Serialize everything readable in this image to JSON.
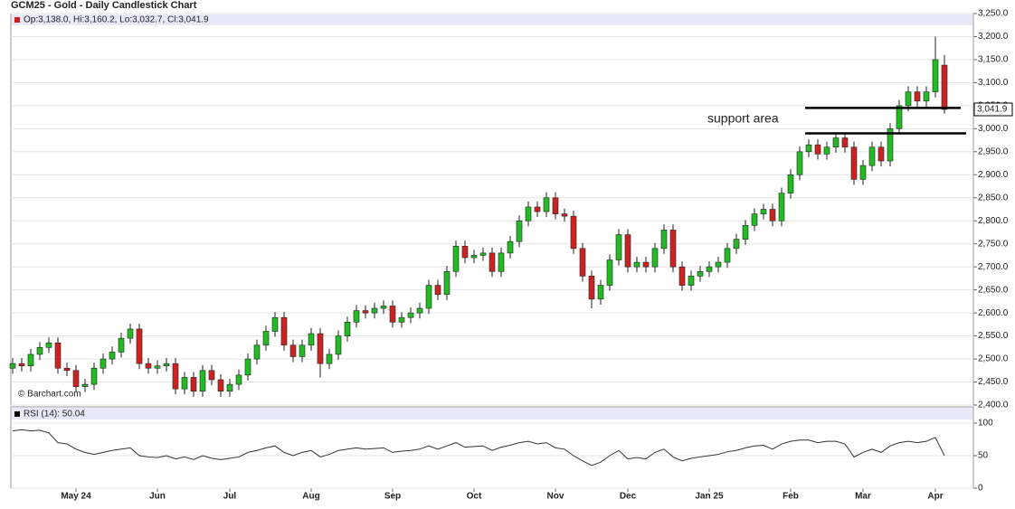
{
  "chart_data": [
    {
      "type": "candlestick",
      "title": "GCM25 - Gold - Daily Candlestick Chart",
      "legend_text": "Op:3,138.0, Hi:3,160.2, Lo:3,032.7, Cl:3,041.9",
      "source": "© Barchart.com",
      "up_color": "#22bb22",
      "down_color": "#cc2222",
      "grid": true,
      "categories": [
        null,
        null,
        null,
        null,
        null,
        null,
        null,
        "May 24",
        null,
        null,
        null,
        null,
        null,
        null,
        null,
        null,
        "Jun",
        null,
        null,
        null,
        null,
        null,
        null,
        null,
        "Jul",
        null,
        null,
        null,
        null,
        null,
        null,
        null,
        null,
        "Aug",
        null,
        null,
        null,
        null,
        null,
        null,
        null,
        null,
        "Sep",
        null,
        null,
        null,
        null,
        null,
        null,
        null,
        null,
        "Oct",
        null,
        null,
        null,
        null,
        null,
        null,
        null,
        null,
        "Nov",
        null,
        null,
        null,
        null,
        null,
        null,
        null,
        "Dec",
        null,
        null,
        null,
        null,
        null,
        null,
        null,
        null,
        "Jan 25",
        null,
        null,
        null,
        null,
        null,
        null,
        null,
        null,
        "Feb",
        null,
        null,
        null,
        null,
        null,
        null,
        null,
        "Mar",
        null,
        null,
        null,
        null,
        null,
        null,
        null,
        "Apr",
        null
      ],
      "open": [
        2480,
        2490,
        2485,
        2510,
        2525,
        2535,
        2480,
        2475,
        2440,
        2445,
        2480,
        2500,
        2515,
        2545,
        2565,
        2490,
        2480,
        2485,
        2490,
        2435,
        2460,
        2430,
        2475,
        2455,
        2430,
        2445,
        2465,
        2500,
        2530,
        2560,
        2590,
        2530,
        2505,
        2530,
        2555,
        2490,
        2510,
        2550,
        2580,
        2605,
        2600,
        2610,
        2615,
        2580,
        2590,
        2600,
        2610,
        2660,
        2640,
        2690,
        2745,
        2720,
        2725,
        2730,
        2690,
        2730,
        2755,
        2800,
        2830,
        2820,
        2850,
        2815,
        2810,
        2740,
        2680,
        2630,
        2660,
        2715,
        2770,
        2700,
        2710,
        2700,
        2740,
        2780,
        2700,
        2660,
        2680,
        2690,
        2700,
        2710,
        2740,
        2760,
        2790,
        2815,
        2825,
        2800,
        2860,
        2900,
        2950,
        2965,
        2945,
        2960,
        2980,
        2960,
        2890,
        2920,
        2960,
        2930,
        3000,
        3050,
        3080,
        3060,
        3080,
        3138
      ],
      "high": [
        2502,
        2502,
        2522,
        2537,
        2547,
        2547,
        2492,
        2487,
        2457,
        2492,
        2512,
        2527,
        2557,
        2577,
        2577,
        2502,
        2497,
        2502,
        2502,
        2472,
        2472,
        2487,
        2487,
        2467,
        2457,
        2477,
        2512,
        2542,
        2572,
        2602,
        2602,
        2542,
        2542,
        2567,
        2567,
        2522,
        2562,
        2592,
        2617,
        2617,
        2622,
        2627,
        2627,
        2602,
        2612,
        2622,
        2672,
        2672,
        2702,
        2757,
        2757,
        2737,
        2742,
        2742,
        2742,
        2767,
        2812,
        2842,
        2842,
        2862,
        2862,
        2827,
        2822,
        2752,
        2692,
        2672,
        2727,
        2782,
        2782,
        2722,
        2722,
        2752,
        2792,
        2792,
        2712,
        2692,
        2702,
        2712,
        2722,
        2752,
        2772,
        2802,
        2827,
        2837,
        2837,
        2872,
        2912,
        2962,
        2977,
        2977,
        2972,
        2992,
        2992,
        2972,
        2932,
        2972,
        2972,
        3012,
        3062,
        3092,
        3092,
        3092,
        3200,
        3160.2
      ],
      "low": [
        2468,
        2473,
        2473,
        2498,
        2513,
        2468,
        2463,
        2428,
        2428,
        2433,
        2468,
        2488,
        2503,
        2533,
        2478,
        2468,
        2468,
        2473,
        2423,
        2423,
        2418,
        2418,
        2443,
        2418,
        2418,
        2433,
        2453,
        2488,
        2518,
        2548,
        2518,
        2493,
        2493,
        2518,
        2460,
        2478,
        2498,
        2538,
        2568,
        2588,
        2588,
        2598,
        2568,
        2568,
        2578,
        2588,
        2598,
        2628,
        2628,
        2678,
        2708,
        2708,
        2713,
        2678,
        2678,
        2718,
        2743,
        2788,
        2808,
        2808,
        2803,
        2798,
        2728,
        2668,
        2610,
        2618,
        2648,
        2703,
        2688,
        2688,
        2688,
        2688,
        2728,
        2688,
        2648,
        2648,
        2668,
        2678,
        2688,
        2698,
        2728,
        2748,
        2778,
        2803,
        2788,
        2788,
        2848,
        2888,
        2938,
        2933,
        2933,
        2948,
        2948,
        2878,
        2878,
        2908,
        2918,
        2918,
        2988,
        3038,
        3048,
        3048,
        3068,
        3032.7
      ],
      "close": [
        2490,
        2485,
        2510,
        2525,
        2535,
        2480,
        2475,
        2440,
        2445,
        2480,
        2500,
        2515,
        2545,
        2565,
        2490,
        2480,
        2485,
        2490,
        2435,
        2460,
        2430,
        2475,
        2455,
        2430,
        2445,
        2465,
        2500,
        2530,
        2560,
        2590,
        2530,
        2505,
        2530,
        2555,
        2490,
        2510,
        2550,
        2580,
        2605,
        2600,
        2610,
        2615,
        2580,
        2590,
        2600,
        2610,
        2660,
        2640,
        2690,
        2745,
        2720,
        2725,
        2730,
        2690,
        2730,
        2755,
        2800,
        2830,
        2820,
        2850,
        2815,
        2810,
        2740,
        2680,
        2630,
        2660,
        2715,
        2770,
        2700,
        2710,
        2700,
        2740,
        2780,
        2700,
        2660,
        2680,
        2690,
        2700,
        2710,
        2740,
        2760,
        2790,
        2815,
        2825,
        2800,
        2860,
        2900,
        2950,
        2965,
        2945,
        2960,
        2980,
        2960,
        2890,
        2920,
        2960,
        2930,
        3000,
        3050,
        3080,
        3060,
        3080,
        3150,
        3041.9
      ],
      "ylim": [
        2400,
        3250
      ],
      "yticks": [
        {
          "value": 2400,
          "label": "2,400.0"
        },
        {
          "value": 2450,
          "label": "2,450.0"
        },
        {
          "value": 2500,
          "label": "2,500.0"
        },
        {
          "value": 2550,
          "label": "2,550.0"
        },
        {
          "value": 2600,
          "label": "2,600.0"
        },
        {
          "value": 2650,
          "label": "2,650.0"
        },
        {
          "value": 2700,
          "label": "2,700.0"
        },
        {
          "value": 2750,
          "label": "2,750.0"
        },
        {
          "value": 2800,
          "label": "2,800.0"
        },
        {
          "value": 2850,
          "label": "2,850.0"
        },
        {
          "value": 2900,
          "label": "2,900.0"
        },
        {
          "value": 2950,
          "label": "2,950.0"
        },
        {
          "value": 3000,
          "label": "3,000.0"
        },
        {
          "value": 3050,
          "label": "3,050.0"
        },
        {
          "value": 3100,
          "label": "3,100.0"
        },
        {
          "value": 3150,
          "label": "3,150.0"
        },
        {
          "value": 3200,
          "label": "3,200.0"
        },
        {
          "value": 3250,
          "label": "3,250.0"
        }
      ],
      "last_price": {
        "value": 3041.9,
        "label": "3,041.9"
      },
      "support_lines": [
        3045,
        2990
      ],
      "annotation": "support area"
    },
    {
      "type": "line",
      "legend_text": "RSI (14): 50.04",
      "color": "#333333",
      "values": [
        88,
        90,
        88,
        89,
        85,
        70,
        68,
        60,
        55,
        52,
        55,
        58,
        60,
        62,
        50,
        48,
        47,
        50,
        45,
        48,
        44,
        50,
        46,
        44,
        46,
        48,
        55,
        58,
        62,
        65,
        55,
        50,
        55,
        58,
        48,
        52,
        58,
        60,
        62,
        60,
        61,
        62,
        55,
        57,
        58,
        60,
        65,
        60,
        65,
        70,
        63,
        64,
        65,
        58,
        63,
        66,
        70,
        72,
        68,
        70,
        62,
        60,
        50,
        42,
        35,
        40,
        50,
        58,
        45,
        47,
        45,
        55,
        60,
        48,
        42,
        46,
        48,
        50,
        52,
        56,
        58,
        62,
        65,
        66,
        60,
        68,
        72,
        74,
        74,
        70,
        72,
        72,
        68,
        48,
        55,
        60,
        55,
        65,
        70,
        72,
        70,
        72,
        78,
        50.04
      ],
      "ylim": [
        0,
        125
      ],
      "yticks": [
        0,
        50,
        100
      ]
    }
  ]
}
